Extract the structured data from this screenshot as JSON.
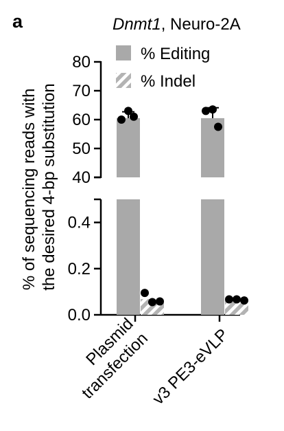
{
  "panel_label": "a",
  "title": {
    "gene": "Dnmt1",
    "cell_line": ", Neuro-2A"
  },
  "colors": {
    "editing": "#a9a9a9",
    "indel_stripe_a": "#b3b3b3",
    "indel_stripe_b": "#ffffff",
    "point": "#000000",
    "axis": "#000000"
  },
  "chart_data": {
    "type": "bar",
    "title": "Dnmt1, Neuro-2A",
    "ylabel": "% of sequencing reads with the desired 4-bp substitution",
    "xlabel": "",
    "categories": [
      "Plasmid transfection",
      "v3 PE3-eVLP"
    ],
    "category_labels": [
      [
        "Plasmid",
        "transfection"
      ],
      [
        "v3 PE3-eVLP"
      ]
    ],
    "y_axis_segments": [
      {
        "range": [
          40,
          80
        ],
        "ticks": [
          40,
          50,
          60,
          70,
          80
        ],
        "tick_labels": [
          "40",
          "50",
          "60",
          "70",
          "80"
        ]
      },
      {
        "range": [
          0,
          0.5
        ],
        "ticks": [
          0,
          0.2,
          0.4
        ],
        "tick_labels": [
          "0.0",
          "0.2",
          "0.4"
        ]
      }
    ],
    "broken_axis": true,
    "legend_position": "top-right",
    "series": [
      {
        "name": "% Editing",
        "pattern": "solid",
        "values": [
          60.5,
          60.5
        ],
        "errors": [
          2.2,
          3.6
        ],
        "points": [
          [
            63,
            60,
            61
          ],
          [
            63.5,
            63,
            57.5
          ]
        ]
      },
      {
        "name": "% Indel",
        "pattern": "hatched",
        "values": [
          0.068,
          0.063
        ],
        "errors": [
          0,
          0
        ],
        "points": [
          [
            0.095,
            0.055,
            0.058
          ],
          [
            0.067,
            0.067,
            0.062
          ]
        ]
      }
    ]
  }
}
